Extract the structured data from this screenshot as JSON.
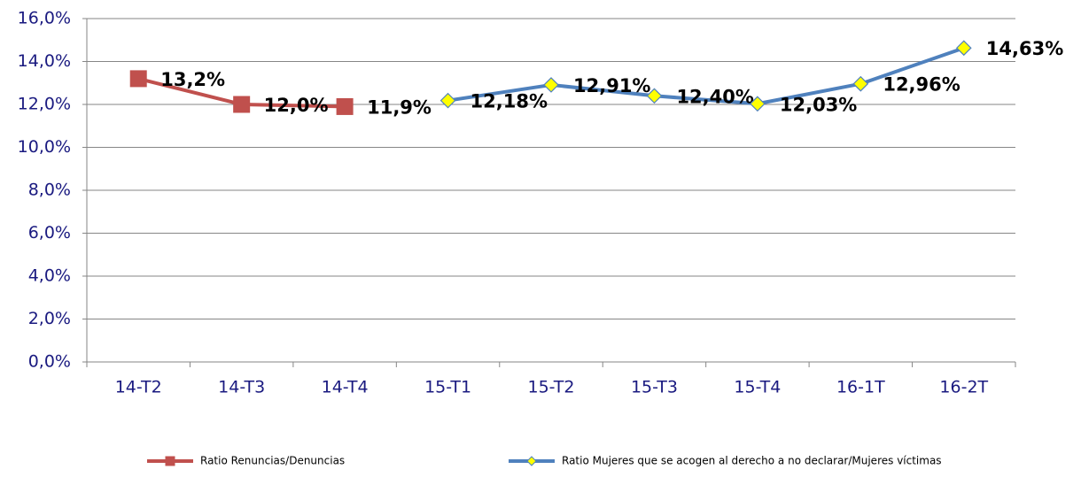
{
  "chart_data": {
    "type": "line",
    "categories": [
      "14-T2",
      "14-T3",
      "14-T4",
      "15-T1",
      "15-T2",
      "15-T3",
      "15-T4",
      "16-1T",
      "16-2T"
    ],
    "series": [
      {
        "name": "Ratio Renuncias/Denuncias",
        "color": "#c0504d",
        "marker": "square",
        "marker_fill": "#c0504d",
        "values": [
          13.2,
          12.0,
          11.9,
          null,
          null,
          null,
          null,
          null,
          null
        ],
        "value_labels": [
          "13,2%",
          "12,0%",
          "11,9%",
          null,
          null,
          null,
          null,
          null,
          null
        ]
      },
      {
        "name": "Ratio Mujeres que se acogen al derecho a no declarar/Mujeres víctimas",
        "color": "#4f81bd",
        "marker": "diamond",
        "marker_fill": "#ffff00",
        "values": [
          null,
          null,
          null,
          12.18,
          12.91,
          12.4,
          12.03,
          12.96,
          14.63
        ],
        "value_labels": [
          null,
          null,
          null,
          "12,18%",
          "12,91%",
          "12,40%",
          "12,03%",
          "12,96%",
          "14,63%"
        ]
      }
    ],
    "ylim": [
      0,
      16
    ],
    "yticks": [
      {
        "value": 0,
        "label": "0,0%"
      },
      {
        "value": 2,
        "label": "2,0%"
      },
      {
        "value": 4,
        "label": "4,0%"
      },
      {
        "value": 6,
        "label": "6,0%"
      },
      {
        "value": 8,
        "label": "8,0%"
      },
      {
        "value": 10,
        "label": "10,0%"
      },
      {
        "value": 12,
        "label": "12,0%"
      },
      {
        "value": 14,
        "label": "14,0%"
      },
      {
        "value": 16,
        "label": "16,0%"
      }
    ],
    "grid": true,
    "legend": "bottom"
  }
}
